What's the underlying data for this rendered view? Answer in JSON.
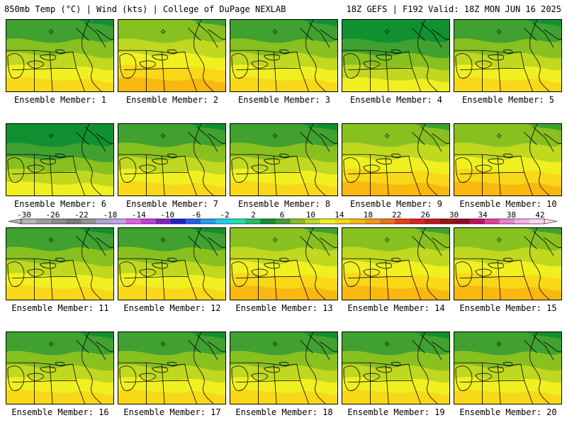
{
  "header": {
    "left": "850mb Temp (°C) | Wind (kts) | College of DuPage NEXLAB",
    "right": "18Z GEFS | F192 Valid: 18Z MON JUN 16 2025"
  },
  "colorbar": {
    "labels": [
      "-30",
      "-26",
      "-22",
      "-18",
      "-14",
      "-10",
      "-6",
      "-2",
      "2",
      "6",
      "10",
      "14",
      "18",
      "22",
      "26",
      "30",
      "34",
      "38",
      "42"
    ],
    "colors": [
      "#b0b8b0",
      "#98a098",
      "#889088",
      "#787878",
      "#909098",
      "#a8a8d0",
      "#c8a0e8",
      "#e060e8",
      "#c040d8",
      "#8020c8",
      "#2020c8",
      "#2060f0",
      "#20a0f0",
      "#20d0f0",
      "#20e0b0",
      "#20c060",
      "#109030",
      "#40a030",
      "#88c020",
      "#c0d820",
      "#f0f020",
      "#f8d818",
      "#f8b810",
      "#f89810",
      "#f07010",
      "#e84010",
      "#e02020",
      "#c01818",
      "#a01010",
      "#900c20",
      "#c01060",
      "#e040a0",
      "#f080d0",
      "#f8b0e8",
      "#fcd8f4"
    ]
  },
  "panels": [
    {
      "label": "Ensemble Member: 1",
      "warmth": 0.45
    },
    {
      "label": "Ensemble Member: 2",
      "warmth": 0.7
    },
    {
      "label": "Ensemble Member: 3",
      "warmth": 0.6
    },
    {
      "label": "Ensemble Member: 4",
      "warmth": 0.35
    },
    {
      "label": "Ensemble Member: 5",
      "warmth": 0.4
    },
    {
      "label": "Ensemble Member: 6",
      "warmth": 0.2
    },
    {
      "label": "Ensemble Member: 7",
      "warmth": 0.6
    },
    {
      "label": "Ensemble Member: 8",
      "warmth": 0.45
    },
    {
      "label": "Ensemble Member: 9",
      "warmth": 0.65
    },
    {
      "label": "Ensemble Member: 10",
      "warmth": 0.7
    },
    {
      "label": "Ensemble Member: 11",
      "warmth": 0.45
    },
    {
      "label": "Ensemble Member: 12",
      "warmth": 0.4
    },
    {
      "label": "Ensemble Member: 13",
      "warmth": 0.75
    },
    {
      "label": "Ensemble Member: 14",
      "warmth": 0.75
    },
    {
      "label": "Ensemble Member: 15",
      "warmth": 0.7
    },
    {
      "label": "Ensemble Member: 16",
      "warmth": 0.4
    },
    {
      "label": "Ensemble Member: 17",
      "warmth": 0.45
    },
    {
      "label": "Ensemble Member: 18",
      "warmth": 0.5
    },
    {
      "label": "Ensemble Member: 19",
      "warmth": 0.45
    },
    {
      "label": "Ensemble Member: 20",
      "warmth": 0.55
    }
  ]
}
